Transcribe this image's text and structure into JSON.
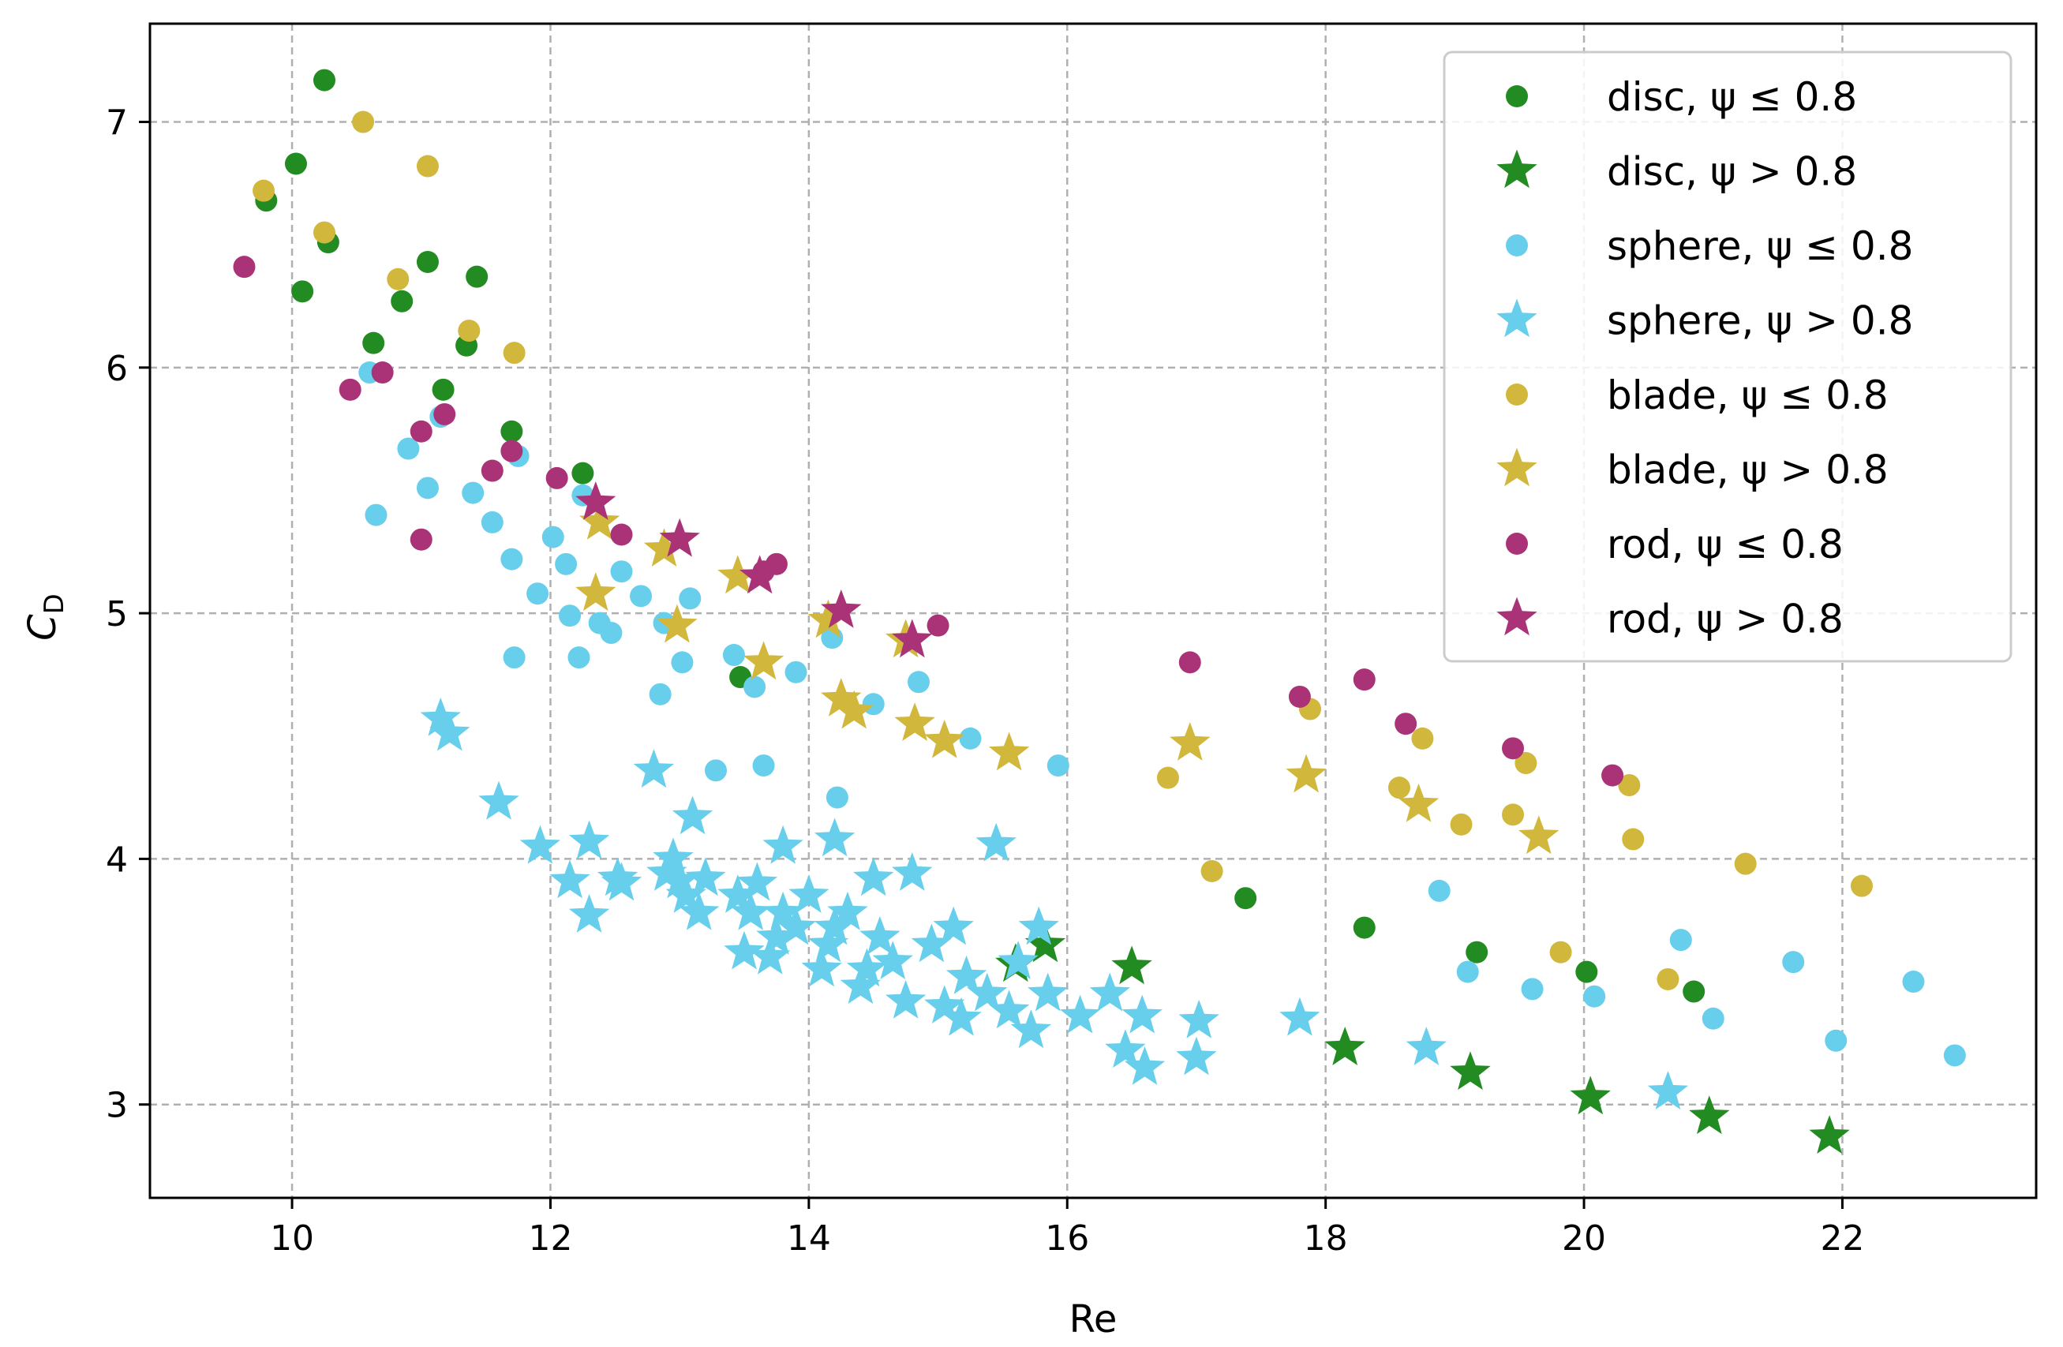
{
  "chart_data": {
    "type": "scatter",
    "xlabel": "Re",
    "ylabel": "C",
    "ylabel_sub": "D",
    "xlim": [
      8.9,
      23.5
    ],
    "ylim": [
      2.62,
      7.4
    ],
    "xticks": [
      "10",
      "12",
      "14",
      "16",
      "18",
      "20",
      "22"
    ],
    "xtick_values": [
      10,
      12,
      14,
      16,
      18,
      20,
      22
    ],
    "yticks": [
      "3",
      "4",
      "5",
      "6",
      "7"
    ],
    "ytick_values": [
      3,
      4,
      5,
      6,
      7
    ],
    "grid": true,
    "legend_position": "top-right",
    "series": [
      {
        "name": "disc, ψ ≤ 0.8",
        "color": "#228B22",
        "marker": "circle",
        "points": [
          [
            10.25,
            7.17
          ],
          [
            10.03,
            6.83
          ],
          [
            9.8,
            6.68
          ],
          [
            10.28,
            6.51
          ],
          [
            10.08,
            6.31
          ],
          [
            11.05,
            6.43
          ],
          [
            11.43,
            6.37
          ],
          [
            10.63,
            6.1
          ],
          [
            10.85,
            6.27
          ],
          [
            11.35,
            6.09
          ],
          [
            11.17,
            5.91
          ],
          [
            11.7,
            5.74
          ],
          [
            12.25,
            5.57
          ],
          [
            13.47,
            4.74
          ],
          [
            17.38,
            3.84
          ],
          [
            18.3,
            3.72
          ],
          [
            19.17,
            3.62
          ],
          [
            20.02,
            3.54
          ],
          [
            20.85,
            3.46
          ]
        ]
      },
      {
        "name": "disc, ψ > 0.8",
        "color": "#228B22",
        "marker": "star",
        "points": [
          [
            15.6,
            3.57
          ],
          [
            15.83,
            3.65
          ],
          [
            16.5,
            3.56
          ],
          [
            18.15,
            3.23
          ],
          [
            19.12,
            3.13
          ],
          [
            20.05,
            3.03
          ],
          [
            20.97,
            2.95
          ],
          [
            21.9,
            2.87
          ]
        ]
      },
      {
        "name": "sphere, ψ ≤ 0.8",
        "color": "#67CFEB",
        "marker": "circle",
        "points": [
          [
            10.6,
            5.98
          ],
          [
            10.65,
            5.4
          ],
          [
            10.9,
            5.67
          ],
          [
            11.05,
            5.51
          ],
          [
            11.15,
            5.8
          ],
          [
            11.4,
            5.49
          ],
          [
            11.55,
            5.37
          ],
          [
            11.7,
            5.22
          ],
          [
            11.75,
            5.64
          ],
          [
            11.9,
            5.08
          ],
          [
            11.72,
            4.82
          ],
          [
            12.02,
            5.31
          ],
          [
            12.12,
            5.2
          ],
          [
            12.15,
            4.99
          ],
          [
            12.22,
            4.82
          ],
          [
            12.25,
            5.48
          ],
          [
            12.38,
            4.96
          ],
          [
            12.47,
            4.92
          ],
          [
            12.55,
            5.17
          ],
          [
            12.7,
            5.07
          ],
          [
            12.85,
            4.67
          ],
          [
            12.88,
            4.96
          ],
          [
            13.02,
            4.8
          ],
          [
            13.08,
            5.06
          ],
          [
            13.28,
            4.36
          ],
          [
            13.42,
            4.83
          ],
          [
            13.58,
            4.7
          ],
          [
            13.65,
            4.38
          ],
          [
            13.9,
            4.76
          ],
          [
            14.18,
            4.9
          ],
          [
            14.22,
            4.25
          ],
          [
            14.5,
            4.63
          ],
          [
            14.85,
            4.72
          ],
          [
            15.25,
            4.49
          ],
          [
            15.93,
            4.38
          ],
          [
            18.88,
            3.87
          ],
          [
            19.1,
            3.54
          ],
          [
            19.6,
            3.47
          ],
          [
            20.08,
            3.44
          ],
          [
            20.75,
            3.67
          ],
          [
            21.0,
            3.35
          ],
          [
            21.62,
            3.58
          ],
          [
            21.95,
            3.26
          ],
          [
            22.55,
            3.5
          ],
          [
            22.87,
            3.2
          ]
        ]
      },
      {
        "name": "sphere, ψ > 0.8",
        "color": "#67CFEB",
        "marker": "star",
        "points": [
          [
            11.15,
            4.57
          ],
          [
            11.22,
            4.51
          ],
          [
            11.6,
            4.23
          ],
          [
            11.92,
            4.05
          ],
          [
            12.15,
            3.91
          ],
          [
            12.3,
            4.07
          ],
          [
            12.3,
            3.77
          ],
          [
            12.52,
            3.92
          ],
          [
            12.55,
            3.9
          ],
          [
            12.8,
            4.36
          ],
          [
            12.9,
            3.94
          ],
          [
            12.95,
            4.0
          ],
          [
            13.0,
            3.91
          ],
          [
            13.05,
            3.85
          ],
          [
            13.1,
            4.17
          ],
          [
            13.15,
            3.78
          ],
          [
            13.2,
            3.92
          ],
          [
            13.45,
            3.85
          ],
          [
            13.5,
            3.62
          ],
          [
            13.55,
            3.78
          ],
          [
            13.6,
            3.9
          ],
          [
            13.7,
            3.6
          ],
          [
            13.75,
            3.68
          ],
          [
            13.8,
            3.78
          ],
          [
            13.8,
            4.05
          ],
          [
            13.9,
            3.72
          ],
          [
            14.0,
            3.85
          ],
          [
            14.1,
            3.55
          ],
          [
            14.15,
            3.65
          ],
          [
            14.2,
            3.72
          ],
          [
            14.2,
            4.08
          ],
          [
            14.3,
            3.78
          ],
          [
            14.4,
            3.48
          ],
          [
            14.45,
            3.55
          ],
          [
            14.5,
            3.92
          ],
          [
            14.55,
            3.68
          ],
          [
            14.65,
            3.58
          ],
          [
            14.75,
            3.42
          ],
          [
            14.8,
            3.94
          ],
          [
            14.95,
            3.65
          ],
          [
            15.05,
            3.4
          ],
          [
            15.12,
            3.72
          ],
          [
            15.18,
            3.35
          ],
          [
            15.22,
            3.52
          ],
          [
            15.38,
            3.45
          ],
          [
            15.45,
            4.06
          ],
          [
            15.55,
            3.38
          ],
          [
            15.62,
            3.58
          ],
          [
            15.72,
            3.3
          ],
          [
            15.78,
            3.72
          ],
          [
            15.85,
            3.45
          ],
          [
            16.1,
            3.36
          ],
          [
            16.33,
            3.45
          ],
          [
            16.45,
            3.22
          ],
          [
            16.58,
            3.36
          ],
          [
            16.6,
            3.15
          ],
          [
            17.02,
            3.34
          ],
          [
            17.0,
            3.19
          ],
          [
            17.8,
            3.35
          ],
          [
            18.78,
            3.23
          ],
          [
            20.65,
            3.05
          ]
        ]
      },
      {
        "name": "blade, ψ ≤ 0.8",
        "color": "#D1B73C",
        "marker": "circle",
        "points": [
          [
            9.78,
            6.72
          ],
          [
            10.25,
            6.55
          ],
          [
            10.55,
            7.0
          ],
          [
            10.82,
            6.36
          ],
          [
            11.05,
            6.82
          ],
          [
            11.37,
            6.15
          ],
          [
            11.72,
            6.06
          ],
          [
            16.78,
            4.33
          ],
          [
            17.12,
            3.95
          ],
          [
            17.88,
            4.61
          ],
          [
            18.57,
            4.29
          ],
          [
            18.75,
            4.49
          ],
          [
            19.05,
            4.14
          ],
          [
            19.45,
            4.18
          ],
          [
            19.55,
            4.39
          ],
          [
            19.82,
            3.62
          ],
          [
            20.35,
            4.3
          ],
          [
            20.38,
            4.08
          ],
          [
            20.65,
            3.51
          ],
          [
            21.25,
            3.98
          ],
          [
            22.15,
            3.89
          ]
        ]
      },
      {
        "name": "blade, ψ > 0.8",
        "color": "#D1B73C",
        "marker": "star",
        "points": [
          [
            12.38,
            5.37
          ],
          [
            12.35,
            5.08
          ],
          [
            12.88,
            5.26
          ],
          [
            12.98,
            4.95
          ],
          [
            13.45,
            5.15
          ],
          [
            13.65,
            4.8
          ],
          [
            14.15,
            4.97
          ],
          [
            14.25,
            4.65
          ],
          [
            14.35,
            4.6
          ],
          [
            14.75,
            4.89
          ],
          [
            14.82,
            4.55
          ],
          [
            15.05,
            4.48
          ],
          [
            15.55,
            4.43
          ],
          [
            16.95,
            4.47
          ],
          [
            17.85,
            4.34
          ],
          [
            18.72,
            4.22
          ],
          [
            19.65,
            4.09
          ]
        ]
      },
      {
        "name": "rod, ψ ≤ 0.8",
        "color": "#AA3377",
        "marker": "circle",
        "points": [
          [
            9.63,
            6.41
          ],
          [
            10.45,
            5.91
          ],
          [
            10.7,
            5.98
          ],
          [
            11.0,
            5.74
          ],
          [
            11.0,
            5.3
          ],
          [
            11.18,
            5.81
          ],
          [
            11.55,
            5.58
          ],
          [
            11.7,
            5.66
          ],
          [
            12.05,
            5.55
          ],
          [
            12.55,
            5.32
          ],
          [
            13.65,
            5.17
          ],
          [
            13.75,
            5.2
          ],
          [
            15.0,
            4.95
          ],
          [
            16.95,
            4.8
          ],
          [
            17.8,
            4.66
          ],
          [
            18.3,
            4.73
          ],
          [
            18.62,
            4.55
          ],
          [
            19.45,
            4.45
          ],
          [
            20.22,
            4.34
          ]
        ]
      },
      {
        "name": "rod, ψ > 0.8",
        "color": "#AA3377",
        "marker": "star",
        "points": [
          [
            12.35,
            5.45
          ],
          [
            13.0,
            5.3
          ],
          [
            13.62,
            5.15
          ],
          [
            14.25,
            5.01
          ],
          [
            14.8,
            4.89
          ]
        ]
      }
    ]
  }
}
